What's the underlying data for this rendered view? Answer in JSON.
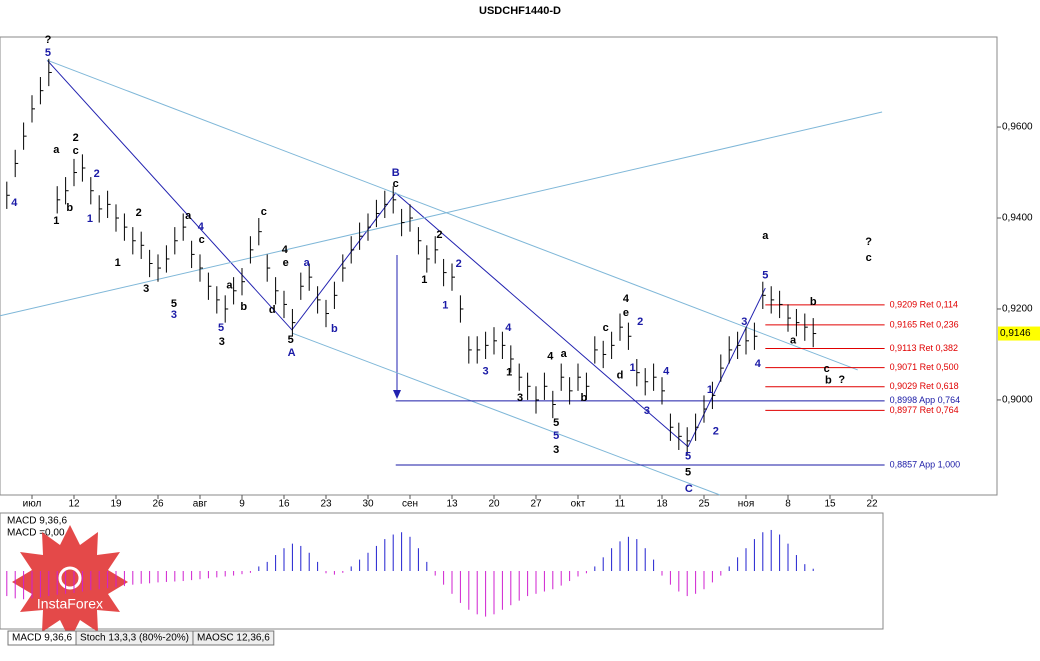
{
  "chart_data": [
    {
      "type": "ohlc",
      "title": "USDCHF1440-D",
      "color": "#000000",
      "xlim": [
        -0.81,
        117.88
      ],
      "ylim": [
        0.8791,
        0.9798
      ],
      "xticks": [
        {
          "value": 3,
          "label": "июл"
        },
        {
          "value": 8,
          "label": "12"
        },
        {
          "value": 13,
          "label": "19"
        },
        {
          "value": 18,
          "label": "26"
        },
        {
          "value": 23,
          "label": "авг"
        },
        {
          "value": 28,
          "label": "9"
        },
        {
          "value": 33,
          "label": "16"
        },
        {
          "value": 38,
          "label": "23"
        },
        {
          "value": 43,
          "label": "30"
        },
        {
          "value": 48,
          "label": "сен"
        },
        {
          "value": 53,
          "label": "13"
        },
        {
          "value": 58,
          "label": "20"
        },
        {
          "value": 63,
          "label": "27"
        },
        {
          "value": 68,
          "label": "окт"
        },
        {
          "value": 73,
          "label": "11"
        },
        {
          "value": 78,
          "label": "18"
        },
        {
          "value": 83,
          "label": "25"
        },
        {
          "value": 88,
          "label": "ноя"
        },
        {
          "value": 93,
          "label": "8"
        },
        {
          "value": 98,
          "label": "15"
        },
        {
          "value": 103,
          "label": "22"
        }
      ],
      "yticks": [
        {
          "value": 0.96,
          "label": "0,9600"
        },
        {
          "value": 0.94,
          "label": "0,9400"
        },
        {
          "value": 0.92,
          "label": "0,9200"
        },
        {
          "value": 0.9,
          "label": "0,9000"
        }
      ],
      "current_price": {
        "value": 0.9146,
        "label": "0,9146",
        "color": "#ffff00"
      },
      "high": [
        0.948,
        0.955,
        0.961,
        0.967,
        0.971,
        0.975,
        0.947,
        0.949,
        0.953,
        0.954,
        0.949,
        0.945,
        0.946,
        0.943,
        0.941,
        0.938,
        0.937,
        0.933,
        0.932,
        0.934,
        0.938,
        0.941,
        0.935,
        0.932,
        0.928,
        0.925,
        0.923,
        0.927,
        0.929,
        0.936,
        0.94,
        0.932,
        0.927,
        0.924,
        0.92,
        0.928,
        0.93,
        0.925,
        0.922,
        0.926,
        0.932,
        0.936,
        0.939,
        0.941,
        0.944,
        0.946,
        0.947,
        0.942,
        0.943,
        0.938,
        0.934,
        0.936,
        0.931,
        0.93,
        0.923,
        0.914,
        0.914,
        0.915,
        0.916,
        0.915,
        0.912,
        0.908,
        0.906,
        0.903,
        0.906,
        0.902,
        0.908,
        0.905,
        0.908,
        0.906,
        0.914,
        0.913,
        0.915,
        0.919,
        0.917,
        0.909,
        0.907,
        0.908,
        0.905,
        0.897,
        0.895,
        0.894,
        0.897,
        0.901,
        0.904,
        0.91,
        0.914,
        0.915,
        0.916,
        0.917,
        0.926,
        0.925,
        0.924,
        0.921,
        0.92,
        0.919,
        0.918
      ],
      "low": [
        0.942,
        0.949,
        0.955,
        0.961,
        0.965,
        0.969,
        0.941,
        0.943,
        0.947,
        0.948,
        0.943,
        0.939,
        0.94,
        0.937,
        0.935,
        0.932,
        0.931,
        0.927,
        0.926,
        0.928,
        0.932,
        0.935,
        0.929,
        0.926,
        0.922,
        0.919,
        0.917,
        0.921,
        0.923,
        0.93,
        0.934,
        0.926,
        0.921,
        0.918,
        0.914,
        0.922,
        0.924,
        0.919,
        0.916,
        0.92,
        0.926,
        0.93,
        0.933,
        0.935,
        0.938,
        0.94,
        0.941,
        0.936,
        0.937,
        0.932,
        0.928,
        0.93,
        0.925,
        0.924,
        0.917,
        0.908,
        0.908,
        0.909,
        0.91,
        0.909,
        0.906,
        0.902,
        0.9,
        0.897,
        0.9,
        0.896,
        0.902,
        0.899,
        0.902,
        0.9,
        0.908,
        0.907,
        0.909,
        0.913,
        0.911,
        0.903,
        0.901,
        0.902,
        0.899,
        0.891,
        0.889,
        0.888,
        0.891,
        0.895,
        0.898,
        0.904,
        0.908,
        0.909,
        0.91,
        0.911,
        0.92,
        0.919,
        0.918,
        0.915,
        0.914,
        0.913,
        0.9116
      ],
      "close": [
        0.945,
        0.952,
        0.958,
        0.964,
        0.968,
        0.972,
        0.944,
        0.946,
        0.95,
        0.951,
        0.946,
        0.942,
        0.943,
        0.94,
        0.938,
        0.935,
        0.934,
        0.93,
        0.929,
        0.931,
        0.935,
        0.938,
        0.932,
        0.929,
        0.925,
        0.922,
        0.92,
        0.924,
        0.926,
        0.933,
        0.937,
        0.929,
        0.924,
        0.921,
        0.917,
        0.925,
        0.927,
        0.922,
        0.919,
        0.923,
        0.929,
        0.933,
        0.936,
        0.938,
        0.941,
        0.943,
        0.944,
        0.939,
        0.94,
        0.935,
        0.931,
        0.933,
        0.928,
        0.927,
        0.92,
        0.911,
        0.911,
        0.912,
        0.913,
        0.912,
        0.909,
        0.905,
        0.903,
        0.9,
        0.903,
        0.899,
        0.905,
        0.902,
        0.905,
        0.903,
        0.911,
        0.91,
        0.912,
        0.916,
        0.914,
        0.906,
        0.904,
        0.905,
        0.902,
        0.894,
        0.892,
        0.891,
        0.894,
        0.898,
        0.901,
        0.907,
        0.911,
        0.912,
        0.913,
        0.914,
        0.923,
        0.922,
        0.921,
        0.918,
        0.917,
        0.916,
        0.9146
      ],
      "levels": [
        {
          "value": 0.9209,
          "label": "0,9209 Ret 0,114",
          "color": "#e00000",
          "x1": 90.3,
          "x2": 104.5
        },
        {
          "value": 0.9165,
          "label": "0,9165 Ret 0,236",
          "color": "#e00000",
          "x1": 90.3,
          "x2": 104.5
        },
        {
          "value": 0.9113,
          "label": "0,9113 Ret 0,382",
          "color": "#e00000",
          "x1": 90.3,
          "x2": 104.5
        },
        {
          "value": 0.9071,
          "label": "0,9071 Ret 0,500",
          "color": "#e00000",
          "x1": 90.3,
          "x2": 104.5
        },
        {
          "value": 0.9029,
          "label": "0,9029 Ret 0,618",
          "color": "#e00000",
          "x1": 90.3,
          "x2": 104.5
        },
        {
          "value": 0.8998,
          "label": "0,8998 App 0,764",
          "color": "#1a1aa6",
          "x1": 46.3,
          "x2": 104.5
        },
        {
          "value": 0.8977,
          "label": "0,8977 Ret 0,764",
          "color": "#e00000",
          "x1": 90.3,
          "x2": 104.5
        },
        {
          "value": 0.8857,
          "label": "0,8857 App 1,000",
          "color": "#1a1aa6",
          "x1": 46.3,
          "x2": 104.5
        }
      ],
      "trendlines": [
        {
          "color": "#2222b0",
          "points": [
            [
              4.8,
              0.9747
            ],
            [
              33.95,
              0.9154
            ],
            [
              46.3,
              0.9455
            ],
            [
              81.1,
              0.8897
            ]
          ]
        },
        {
          "color": "#7fb7d8",
          "points": [
            [
              -0.8,
              0.9185
            ],
            [
              104.2,
              0.9633
            ]
          ]
        },
        {
          "color": "#7fb7d8",
          "points": [
            [
              4.8,
              0.9747
            ],
            [
              101.3,
              0.9066
            ]
          ]
        },
        {
          "color": "#7fb7d8",
          "points": [
            [
              33.95,
              0.9147
            ],
            [
              84.9,
              0.8791
            ]
          ]
        },
        {
          "color": "#2222b0",
          "points": [
            [
              81.1,
              0.8897
            ],
            [
              90.3,
              0.9246
            ]
          ]
        }
      ],
      "annotations": [
        {
          "text": "?",
          "x": 4.9,
          "y": 0.9791,
          "color": "#000000"
        },
        {
          "text": "5",
          "x": 4.9,
          "y": 0.9763,
          "color": "#1a1aa6"
        },
        {
          "text": "4",
          "x": 0.9,
          "y": 0.9433,
          "color": "#1a1aa6"
        },
        {
          "text": "a",
          "x": 5.9,
          "y": 0.9549,
          "color": "#000000"
        },
        {
          "text": "1",
          "x": 5.9,
          "y": 0.9393,
          "color": "#000000"
        },
        {
          "text": "2",
          "x": 8.2,
          "y": 0.9576,
          "color": "#000000"
        },
        {
          "text": "c",
          "x": 8.2,
          "y": 0.9547,
          "color": "#000000"
        },
        {
          "text": "b",
          "x": 7.5,
          "y": 0.9422,
          "color": "#000000"
        },
        {
          "text": "2",
          "x": 10.7,
          "y": 0.9497,
          "color": "#1a1aa6"
        },
        {
          "text": "1",
          "x": 9.9,
          "y": 0.9398,
          "color": "#1a1aa6"
        },
        {
          "text": "2",
          "x": 15.7,
          "y": 0.9411,
          "color": "#000000"
        },
        {
          "text": "1",
          "x": 13.2,
          "y": 0.9301,
          "color": "#000000"
        },
        {
          "text": "3",
          "x": 16.6,
          "y": 0.9244,
          "color": "#000000"
        },
        {
          "text": "5",
          "x": 19.9,
          "y": 0.9211,
          "color": "#000000"
        },
        {
          "text": "3",
          "x": 19.9,
          "y": 0.9187,
          "color": "#1a1aa6"
        },
        {
          "text": "a",
          "x": 21.6,
          "y": 0.9404,
          "color": "#000000"
        },
        {
          "text": "4",
          "x": 23.1,
          "y": 0.938,
          "color": "#1a1aa6"
        },
        {
          "text": "c",
          "x": 23.2,
          "y": 0.9352,
          "color": "#000000"
        },
        {
          "text": "5",
          "x": 25.5,
          "y": 0.9158,
          "color": "#1a1aa6"
        },
        {
          "text": "3",
          "x": 25.6,
          "y": 0.9127,
          "color": "#000000"
        },
        {
          "text": "a",
          "x": 26.5,
          "y": 0.9251,
          "color": "#000000"
        },
        {
          "text": "b",
          "x": 28.2,
          "y": 0.9204,
          "color": "#000000"
        },
        {
          "text": "c",
          "x": 30.6,
          "y": 0.9413,
          "color": "#000000"
        },
        {
          "text": "4",
          "x": 33.1,
          "y": 0.933,
          "color": "#000000"
        },
        {
          "text": "e",
          "x": 33.2,
          "y": 0.9301,
          "color": "#000000"
        },
        {
          "text": "a",
          "x": 35.7,
          "y": 0.9301,
          "color": "#1a1aa6"
        },
        {
          "text": "d",
          "x": 31.6,
          "y": 0.9198,
          "color": "#000000"
        },
        {
          "text": "5",
          "x": 33.8,
          "y": 0.9132,
          "color": "#000000"
        },
        {
          "text": "A",
          "x": 33.9,
          "y": 0.9103,
          "color": "#1a1aa6"
        },
        {
          "text": "b",
          "x": 39,
          "y": 0.9156,
          "color": "#1a1aa6"
        },
        {
          "text": "B",
          "x": 46.3,
          "y": 0.9499,
          "color": "#1a1aa6"
        },
        {
          "text": "c",
          "x": 46.3,
          "y": 0.9475,
          "color": "#000000"
        },
        {
          "text": "2",
          "x": 51.5,
          "y": 0.9363,
          "color": "#000000"
        },
        {
          "text": "1",
          "x": 49.7,
          "y": 0.9264,
          "color": "#000000"
        },
        {
          "text": "2",
          "x": 53.8,
          "y": 0.9299,
          "color": "#1a1aa6"
        },
        {
          "text": "1",
          "x": 52.2,
          "y": 0.9207,
          "color": "#1a1aa6"
        },
        {
          "text": "4",
          "x": 59.7,
          "y": 0.9158,
          "color": "#1a1aa6"
        },
        {
          "text": "3",
          "x": 57,
          "y": 0.9062,
          "color": "#1a1aa6"
        },
        {
          "text": "1",
          "x": 59.8,
          "y": 0.906,
          "color": "#000000"
        },
        {
          "text": "3",
          "x": 61.1,
          "y": 0.9004,
          "color": "#000000"
        },
        {
          "text": "4",
          "x": 64.7,
          "y": 0.9095,
          "color": "#000000"
        },
        {
          "text": "a",
          "x": 66.3,
          "y": 0.9101,
          "color": "#000000"
        },
        {
          "text": "b",
          "x": 68.7,
          "y": 0.9004,
          "color": "#000000"
        },
        {
          "text": "5",
          "x": 65.4,
          "y": 0.8949,
          "color": "#000000"
        },
        {
          "text": "5",
          "x": 65.4,
          "y": 0.8921,
          "color": "#1a1aa6"
        },
        {
          "text": "3",
          "x": 65.4,
          "y": 0.889,
          "color": "#000000"
        },
        {
          "text": "c",
          "x": 71.3,
          "y": 0.9158,
          "color": "#000000"
        },
        {
          "text": "4",
          "x": 73.7,
          "y": 0.9222,
          "color": "#000000"
        },
        {
          "text": "e",
          "x": 73.7,
          "y": 0.9191,
          "color": "#000000"
        },
        {
          "text": "2",
          "x": 75.4,
          "y": 0.9171,
          "color": "#1a1aa6"
        },
        {
          "text": "d",
          "x": 73,
          "y": 0.9053,
          "color": "#000000"
        },
        {
          "text": "1",
          "x": 74.5,
          "y": 0.907,
          "color": "#1a1aa6"
        },
        {
          "text": "3",
          "x": 76.2,
          "y": 0.8976,
          "color": "#1a1aa6"
        },
        {
          "text": "4",
          "x": 78.5,
          "y": 0.9062,
          "color": "#1a1aa6"
        },
        {
          "text": "5",
          "x": 81.1,
          "y": 0.8875,
          "color": "#1a1aa6"
        },
        {
          "text": "5",
          "x": 81.1,
          "y": 0.884,
          "color": "#000000"
        },
        {
          "text": "C",
          "x": 81.2,
          "y": 0.8804,
          "color": "#1a1aa6"
        },
        {
          "text": "1",
          "x": 83.7,
          "y": 0.9022,
          "color": "#1a1aa6"
        },
        {
          "text": "2",
          "x": 84.4,
          "y": 0.893,
          "color": "#1a1aa6"
        },
        {
          "text": "a",
          "x": 90.3,
          "y": 0.936,
          "color": "#000000"
        },
        {
          "text": "5",
          "x": 90.3,
          "y": 0.9273,
          "color": "#1a1aa6"
        },
        {
          "text": "3",
          "x": 87.8,
          "y": 0.9171,
          "color": "#1a1aa6"
        },
        {
          "text": "4",
          "x": 89.4,
          "y": 0.9079,
          "color": "#1a1aa6"
        },
        {
          "text": "b",
          "x": 96,
          "y": 0.9215,
          "color": "#000000"
        },
        {
          "text": "a",
          "x": 93.6,
          "y": 0.913,
          "color": "#000000"
        },
        {
          "text": "c",
          "x": 97.6,
          "y": 0.9068,
          "color": "#000000"
        },
        {
          "text": "b",
          "x": 97.8,
          "y": 0.9042,
          "color": "#000000"
        },
        {
          "text": "?",
          "x": 99.4,
          "y": 0.9044,
          "color": "#000000"
        },
        {
          "text": "?",
          "x": 102.6,
          "y": 0.9347,
          "color": "#000000"
        },
        {
          "text": "c",
          "x": 102.6,
          "y": 0.9312,
          "color": "#000000"
        }
      ]
    },
    {
      "type": "bar",
      "title": "MACD 9,36,6",
      "subtitle": "MACD =0,00",
      "ylim": [
        -1.25,
        1.25
      ],
      "positive_color": "#2020d0",
      "negative_color": "#d020d0",
      "values": [
        -0.55,
        -0.6,
        -0.62,
        -0.6,
        -0.58,
        -0.55,
        -0.52,
        -0.5,
        -0.48,
        -0.45,
        -0.42,
        -0.4,
        -0.38,
        -0.35,
        -0.33,
        -0.3,
        -0.28,
        -0.27,
        -0.25,
        -0.24,
        -0.23,
        -0.22,
        -0.2,
        -0.18,
        -0.16,
        -0.14,
        -0.12,
        -0.1,
        -0.07,
        -0.04,
        0.1,
        0.2,
        0.35,
        0.5,
        0.6,
        0.55,
        0.4,
        0.2,
        -0.05,
        -0.08,
        -0.04,
        0.1,
        0.25,
        0.4,
        0.55,
        0.7,
        0.8,
        0.85,
        0.75,
        0.5,
        0.2,
        -0.1,
        -0.3,
        -0.5,
        -0.7,
        -0.85,
        -0.95,
        -1.0,
        -0.95,
        -0.85,
        -0.75,
        -0.65,
        -0.55,
        -0.5,
        -0.45,
        -0.4,
        -0.32,
        -0.22,
        -0.12,
        -0.05,
        0.1,
        0.3,
        0.5,
        0.65,
        0.75,
        0.7,
        0.5,
        0.25,
        -0.1,
        -0.3,
        -0.45,
        -0.55,
        -0.5,
        -0.4,
        -0.25,
        -0.1,
        0.1,
        0.3,
        0.5,
        0.7,
        0.85,
        0.9,
        0.8,
        0.6,
        0.35,
        0.15,
        0.05
      ]
    }
  ],
  "tabs": [
    "MACD 9,36,6",
    "Stoch 13,3,3 (80%-20%)",
    "MAOSC 12,36,6"
  ],
  "logo": "InstaForex"
}
